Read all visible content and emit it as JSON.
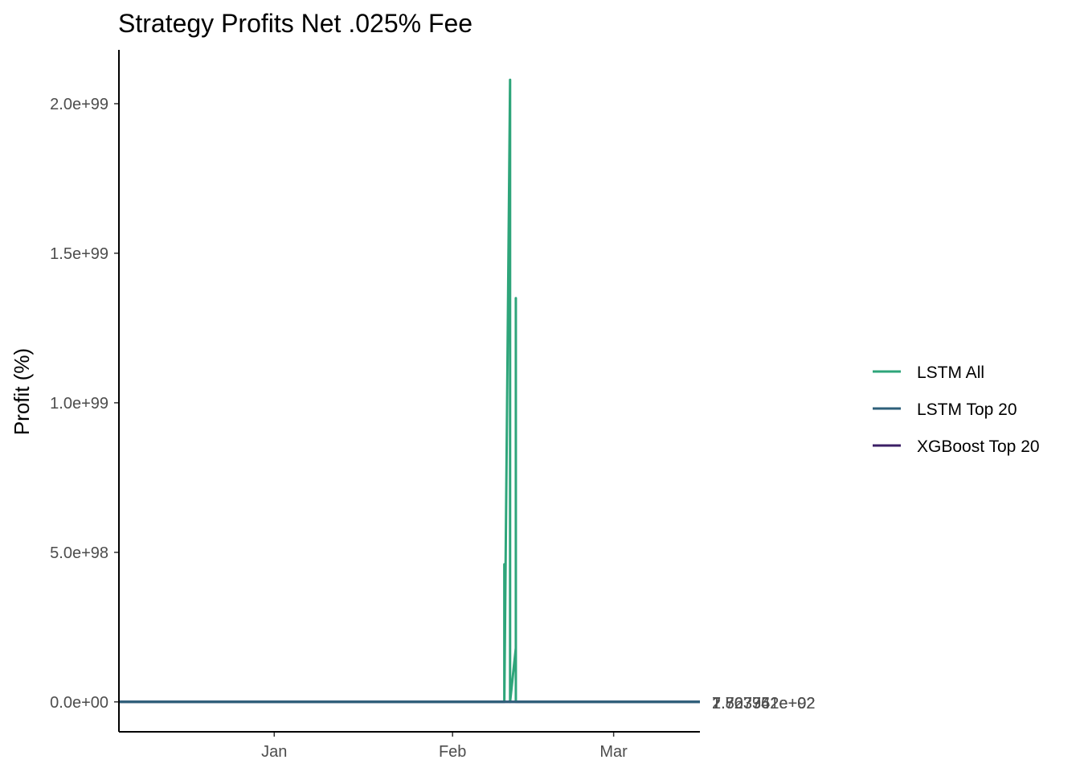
{
  "chart_data": {
    "type": "line",
    "title": "Strategy Profits Net .025% Fee",
    "xlabel": "",
    "ylabel": "Profit (%)",
    "x_ticks": [
      {
        "label": "Jan",
        "date": "2021-01-01"
      },
      {
        "label": "Feb",
        "date": "2021-02-01"
      },
      {
        "label": "Mar",
        "date": "2021-03-01"
      }
    ],
    "xlim": [
      "2020-12-05",
      "2021-03-16"
    ],
    "y_ticks": [
      {
        "label": "0.0e+00",
        "value": 0
      },
      {
        "label": "5.0e+98",
        "value": 5e+98
      },
      {
        "label": "1.0e+99",
        "value": 1e+99
      },
      {
        "label": "1.5e+99",
        "value": 1.5e+99
      },
      {
        "label": "2.0e+99",
        "value": 2e+99
      }
    ],
    "ylim": [
      -1e+98,
      2.18e+99
    ],
    "grid": false,
    "legend_position": "right",
    "series": [
      {
        "name": "XGBoost Top 20",
        "color": "#3b1f66",
        "x": [
          "2020-12-05",
          "2021-03-16"
        ],
        "values": [
          0,
          0
        ]
      },
      {
        "name": "LSTM Top 20",
        "color": "#2e5f7a",
        "x": [
          "2020-12-05",
          "2021-03-16"
        ],
        "values": [
          0,
          0
        ]
      },
      {
        "name": "LSTM All",
        "color": "#2ea57a",
        "x": [
          "2020-12-05",
          "2021-02-10",
          "2021-02-10",
          "2021-02-10",
          "2021-02-11",
          "2021-02-11",
          "2021-02-11",
          "2021-02-11",
          "2021-02-11",
          "2021-02-11",
          "2021-02-12",
          "2021-02-12",
          "2021-02-12",
          "2021-02-12",
          "2021-02-12",
          "2021-03-16"
        ],
        "values": [
          0,
          0,
          4.6e+98,
          0,
          2.08e+99,
          0,
          3.5e+98,
          0,
          1.8e+98,
          0,
          1.8e+98,
          0,
          1.35e+99,
          0,
          0,
          0
        ]
      }
    ],
    "end_labels": [
      "2.567352e+02",
      "1.823961e+92",
      "7.703742e+02"
    ]
  }
}
